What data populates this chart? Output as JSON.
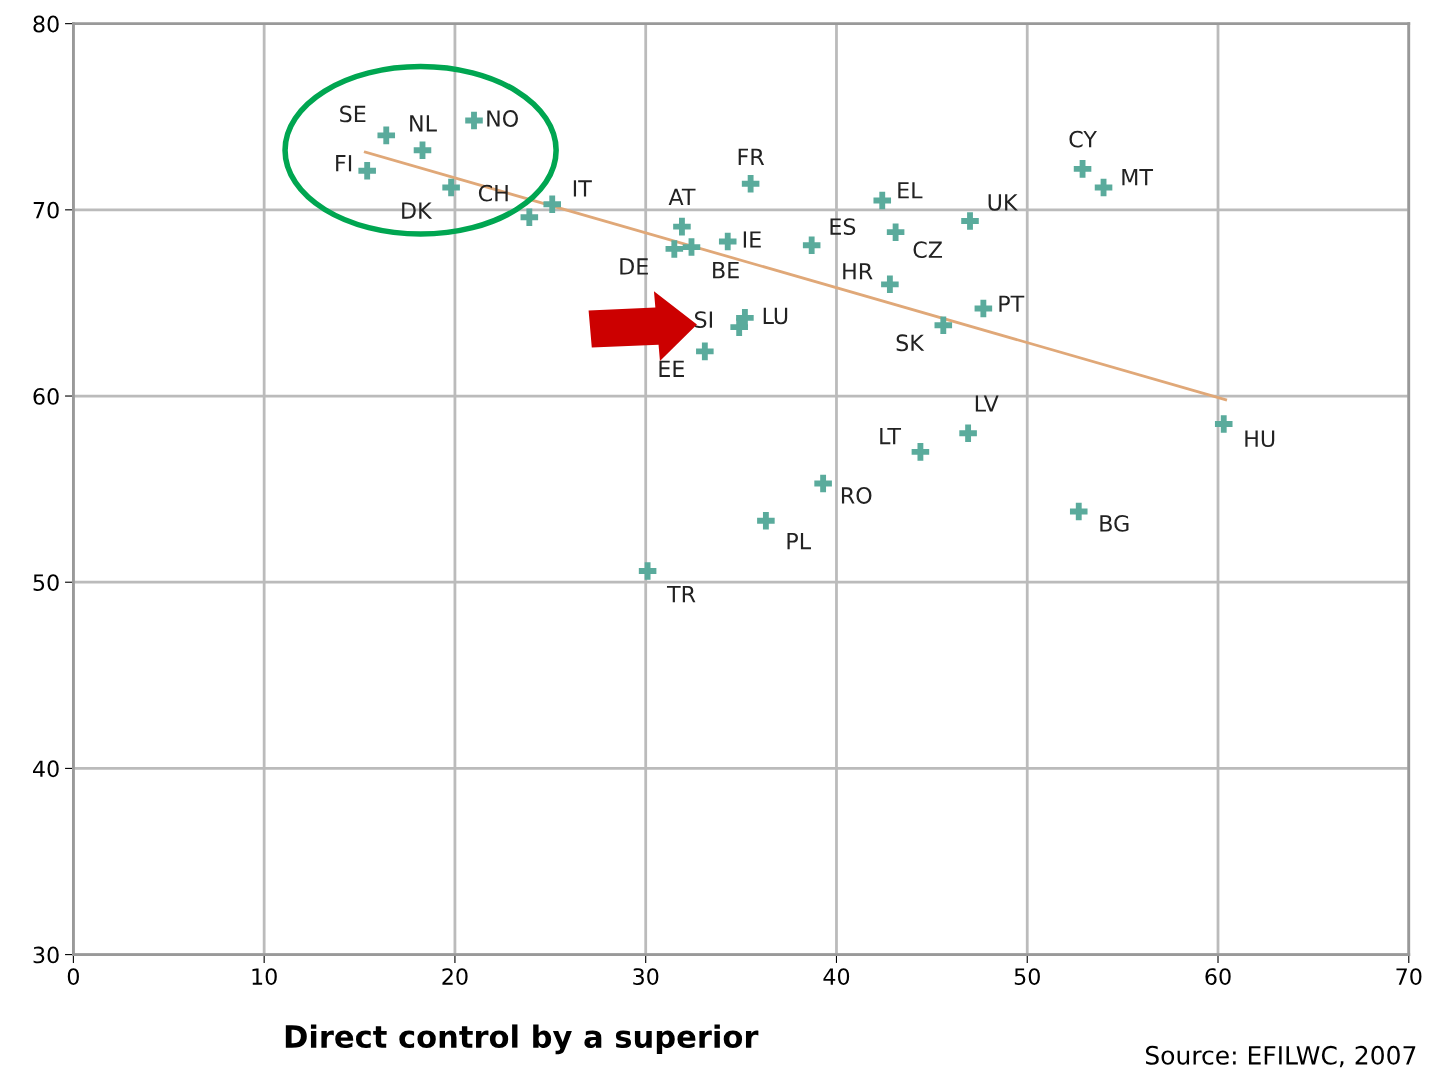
{
  "chart_data": {
    "type": "scatter",
    "xlabel": "Direct control by a superior",
    "series": [
      {
        "color": "#5aab9c",
        "marker": "cross",
        "x": [
          16.4,
          18.3,
          21.0,
          15.4,
          19.8,
          23.9,
          25.1,
          31.9,
          31.5,
          32.4,
          34.3,
          35.5,
          38.7,
          42.4,
          43.1,
          47.0,
          42.8,
          45.6,
          47.7,
          52.9,
          54.0,
          34.9,
          35.2,
          33.1,
          30.1,
          36.3,
          39.3,
          44.4,
          46.9,
          52.7,
          60.3
        ],
        "values": [
          74.0,
          73.2,
          74.8,
          72.1,
          71.2,
          69.6,
          70.3,
          69.1,
          67.9,
          68.0,
          68.3,
          71.4,
          68.1,
          70.5,
          68.8,
          69.4,
          66.0,
          63.8,
          64.7,
          72.2,
          71.2,
          63.7,
          64.2,
          62.4,
          50.6,
          53.3,
          55.3,
          57.0,
          58.0,
          53.8,
          58.5
        ]
      },
      {
        "type": "line",
        "color": "#e0a878",
        "marker": "none",
        "line_style": "solid",
        "x": [
          15.3,
          60.4
        ],
        "values": [
          73.1,
          59.8
        ]
      }
    ],
    "annotations": [
      {
        "text": "SE",
        "x": 16.4,
        "y": 74.0
      },
      {
        "text": "NL",
        "x": 18.3,
        "y": 73.2
      },
      {
        "text": "NO",
        "x": 21.0,
        "y": 74.8
      },
      {
        "text": "FI",
        "x": 15.4,
        "y": 72.1
      },
      {
        "text": "DK",
        "x": 19.8,
        "y": 71.2
      },
      {
        "text": "CH",
        "x": 23.9,
        "y": 69.6
      },
      {
        "text": "IT",
        "x": 25.1,
        "y": 70.3
      },
      {
        "text": "AT",
        "x": 31.9,
        "y": 69.1
      },
      {
        "text": "DE",
        "x": 31.5,
        "y": 67.9
      },
      {
        "text": "BE",
        "x": 32.4,
        "y": 68.0
      },
      {
        "text": "IE",
        "x": 34.3,
        "y": 68.3
      },
      {
        "text": "FR",
        "x": 35.5,
        "y": 71.4
      },
      {
        "text": "ES",
        "x": 38.7,
        "y": 68.1
      },
      {
        "text": "EL",
        "x": 42.4,
        "y": 70.5
      },
      {
        "text": "CZ",
        "x": 43.1,
        "y": 68.8
      },
      {
        "text": "UK",
        "x": 47.0,
        "y": 69.4
      },
      {
        "text": "HR",
        "x": 42.8,
        "y": 66.0
      },
      {
        "text": "SK",
        "x": 45.6,
        "y": 63.8
      },
      {
        "text": "PT",
        "x": 47.7,
        "y": 64.7
      },
      {
        "text": "CY",
        "x": 52.9,
        "y": 72.2
      },
      {
        "text": "MT",
        "x": 54.0,
        "y": 71.2
      },
      {
        "text": "SI",
        "x": 34.9,
        "y": 63.7
      },
      {
        "text": "LU",
        "x": 35.2,
        "y": 64.2
      },
      {
        "text": "EE",
        "x": 33.1,
        "y": 62.4
      },
      {
        "text": "TR",
        "x": 30.1,
        "y": 50.6
      },
      {
        "text": "PL",
        "x": 36.3,
        "y": 53.3
      },
      {
        "text": "RO",
        "x": 39.3,
        "y": 55.3
      },
      {
        "text": "LT",
        "x": 44.4,
        "y": 57.0
      },
      {
        "text": "LV",
        "x": 46.9,
        "y": 58.0
      },
      {
        "text": "BG",
        "x": 52.7,
        "y": 53.8
      },
      {
        "text": "HU",
        "x": 60.3,
        "y": 58.5
      },
      "Source: EFILWC, 2007"
    ],
    "xlim": [
      0,
      70
    ],
    "ylim": [
      30,
      80
    ],
    "xticks": [
      0,
      10,
      20,
      30,
      40,
      50,
      60,
      70
    ],
    "yticks": [
      30,
      40,
      50,
      60,
      70,
      80
    ],
    "grid": true
  }
}
